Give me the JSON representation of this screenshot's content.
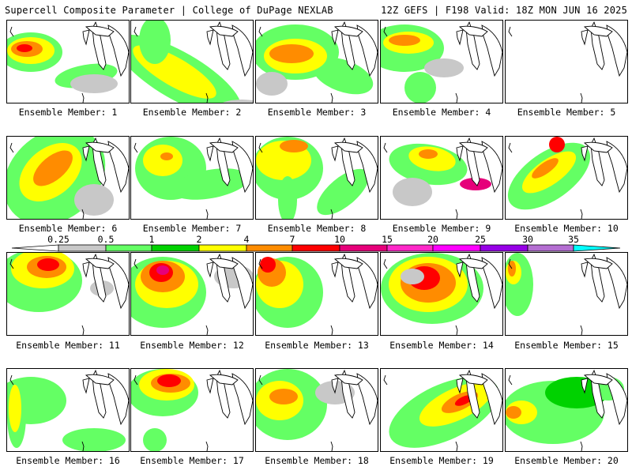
{
  "header": {
    "title": "Supercell Composite Parameter | College of DuPage NEXLAB",
    "run_info": "12Z GEFS | F198 Valid: 18Z MON JUN 16 2025"
  },
  "legend": {
    "ticks": [
      "0.25",
      "0.5",
      "1",
      "2",
      "4",
      "7",
      "10",
      "15",
      "20",
      "25",
      "30",
      "35"
    ],
    "colors": [
      "#c8c8c8",
      "#64ff64",
      "#00d200",
      "#ffff00",
      "#ff8c00",
      "#ff0000",
      "#e6007a",
      "#ff28c8",
      "#ff00ff",
      "#9600e6",
      "#b46ed2",
      "#00ffff"
    ]
  },
  "members": [
    {
      "label": "Ensemble Member: 1"
    },
    {
      "label": "Ensemble Member: 2"
    },
    {
      "label": "Ensemble Member: 3"
    },
    {
      "label": "Ensemble Member: 4"
    },
    {
      "label": "Ensemble Member: 5"
    },
    {
      "label": "Ensemble Member: 6"
    },
    {
      "label": "Ensemble Member: 7"
    },
    {
      "label": "Ensemble Member: 8"
    },
    {
      "label": "Ensemble Member: 9"
    },
    {
      "label": "Ensemble Member: 10"
    },
    {
      "label": "Ensemble Member: 11"
    },
    {
      "label": "Ensemble Member: 12"
    },
    {
      "label": "Ensemble Member: 13"
    },
    {
      "label": "Ensemble Member: 14"
    },
    {
      "label": "Ensemble Member: 15"
    },
    {
      "label": "Ensemble Member: 16"
    },
    {
      "label": "Ensemble Member: 17"
    },
    {
      "label": "Ensemble Member: 18"
    },
    {
      "label": "Ensemble Member: 19"
    },
    {
      "label": "Ensemble Member: 20"
    }
  ]
}
